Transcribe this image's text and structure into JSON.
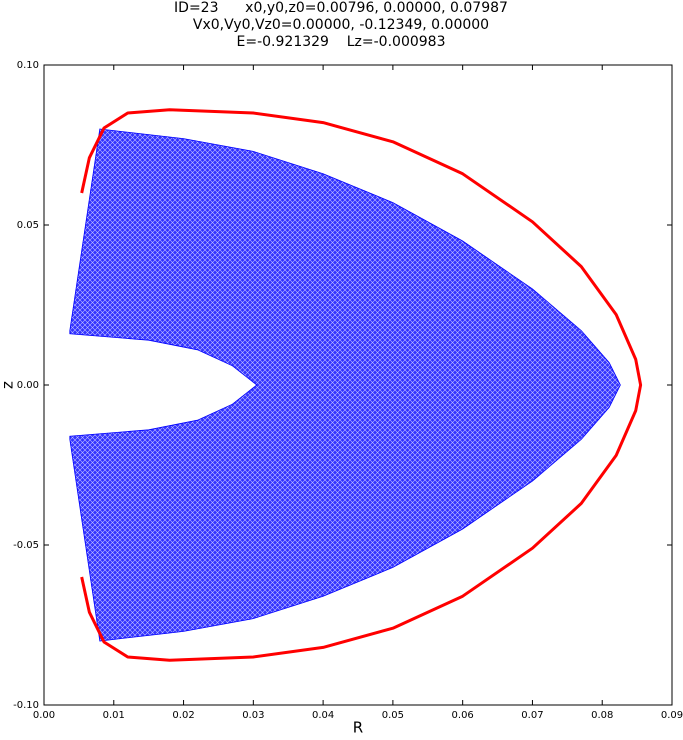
{
  "chart_data": {
    "type": "line",
    "title_lines": [
      "ID=23      x0,y0,z0=0.00796, 0.00000, 0.07987",
      "Vx0,Vy0,Vz0=0.00000, -0.12349, 0.00000",
      "E=-0.921329    Lz=-0.000983"
    ],
    "xlabel": "R",
    "ylabel": "z",
    "xlim": [
      0,
      0.09
    ],
    "ylim": [
      -0.1,
      0.1
    ],
    "xticks": [
      {
        "value": 0,
        "label": "0.00"
      },
      {
        "value": 0.01,
        "label": "0.01"
      },
      {
        "value": 0.02,
        "label": "0.02"
      },
      {
        "value": 0.03,
        "label": "0.03"
      },
      {
        "value": 0.04,
        "label": "0.04"
      },
      {
        "value": 0.05,
        "label": "0.05"
      },
      {
        "value": 0.06,
        "label": "0.06"
      },
      {
        "value": 0.07,
        "label": "0.07"
      },
      {
        "value": 0.08,
        "label": "0.08"
      },
      {
        "value": 0.09,
        "label": "0.09"
      }
    ],
    "yticks": [
      {
        "value": -0.1,
        "label": "-0.10"
      },
      {
        "value": -0.05,
        "label": "-0.05"
      },
      {
        "value": 0,
        "label": "0.00"
      },
      {
        "value": 0.05,
        "label": "0.05"
      },
      {
        "value": 0.1,
        "label": "0.10"
      }
    ],
    "grid": false,
    "series": [
      {
        "color": "#0000ff",
        "fill": true,
        "x": [
          0.008,
          0.02,
          0.03,
          0.04,
          0.05,
          0.06,
          0.07,
          0.077,
          0.081,
          0.0826,
          0.081,
          0.077,
          0.07,
          0.06,
          0.05,
          0.04,
          0.03,
          0.02,
          0.008,
          0.0037,
          0.0037,
          0.015,
          0.022,
          0.027,
          0.0305,
          0.027,
          0.022,
          0.015,
          0.0037,
          0.0037
        ],
        "y": [
          0.08,
          0.077,
          0.073,
          0.066,
          0.057,
          0.045,
          0.03,
          0.017,
          0.007,
          0.0,
          -0.007,
          -0.017,
          -0.03,
          -0.045,
          -0.057,
          -0.066,
          -0.073,
          -0.077,
          -0.08,
          -0.017,
          -0.016,
          -0.014,
          -0.011,
          -0.006,
          0.0,
          0.006,
          0.011,
          0.014,
          0.016,
          0.017
        ]
      },
      {
        "color": "#ff0000",
        "fill": false,
        "x": [
          0.0054,
          0.0065,
          0.0086,
          0.012,
          0.018,
          0.03,
          0.04,
          0.05,
          0.06,
          0.07,
          0.077,
          0.082,
          0.0848,
          0.0855,
          0.0848,
          0.082,
          0.077,
          0.07,
          0.06,
          0.05,
          0.04,
          0.03,
          0.018,
          0.012,
          0.0086,
          0.0065,
          0.0054
        ],
        "y": [
          0.06,
          0.071,
          0.0803,
          0.085,
          0.086,
          0.085,
          0.082,
          0.076,
          0.066,
          0.051,
          0.037,
          0.022,
          0.008,
          0.0,
          -0.008,
          -0.022,
          -0.037,
          -0.051,
          -0.066,
          -0.076,
          -0.082,
          -0.085,
          -0.086,
          -0.085,
          -0.0803,
          -0.071,
          -0.06
        ]
      }
    ]
  }
}
